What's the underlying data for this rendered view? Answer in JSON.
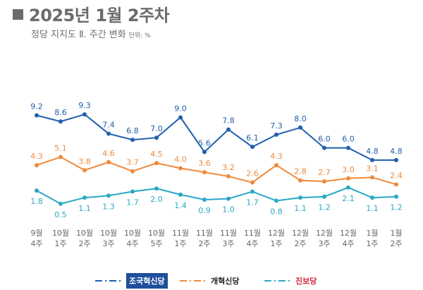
{
  "header": {
    "title": "2025년 1월 2주차",
    "subtitle": "정당 지지도 Ⅱ. 주간 변화",
    "unit": "단위: %"
  },
  "chart_data": {
    "type": "line",
    "title": "2025년 1월 2주차",
    "subtitle": "정당 지지도 Ⅱ. 주간 변화",
    "unit": "%",
    "categories": [
      [
        "9월",
        "4주"
      ],
      [
        "10월",
        "1주"
      ],
      [
        "10월",
        "2주"
      ],
      [
        "10월",
        "3주"
      ],
      [
        "10월",
        "4주"
      ],
      [
        "10월",
        "5주"
      ],
      [
        "11월",
        "1주"
      ],
      [
        "11월",
        "2주"
      ],
      [
        "11월",
        "3주"
      ],
      [
        "11월",
        "4주"
      ],
      [
        "12월",
        "1주"
      ],
      [
        "12월",
        "2주"
      ],
      [
        "12월",
        "3주"
      ],
      [
        "12월",
        "4주"
      ],
      [
        "1월",
        "1주"
      ],
      [
        "1월",
        "2주"
      ]
    ],
    "series": [
      {
        "name": "조국혁신당",
        "color": "#1f5fae",
        "values": [
          9.2,
          8.6,
          9.3,
          7.4,
          6.8,
          7.0,
          9.0,
          5.6,
          7.8,
          6.1,
          7.3,
          8.0,
          6.0,
          6.0,
          4.8,
          4.8
        ]
      },
      {
        "name": "개혁신당",
        "color": "#f0893a",
        "values": [
          4.3,
          5.1,
          3.8,
          4.6,
          3.7,
          4.5,
          4.0,
          3.6,
          3.2,
          2.6,
          4.3,
          2.8,
          2.7,
          3.0,
          3.1,
          2.4
        ]
      },
      {
        "name": "진보당",
        "color": "#2aa8c8",
        "values": [
          1.8,
          0.5,
          1.1,
          1.3,
          1.7,
          2.0,
          1.4,
          0.9,
          1.0,
          1.7,
          0.8,
          1.1,
          1.2,
          2.1,
          1.1,
          1.2
        ]
      }
    ],
    "grid": false,
    "legend": "bottom"
  }
}
